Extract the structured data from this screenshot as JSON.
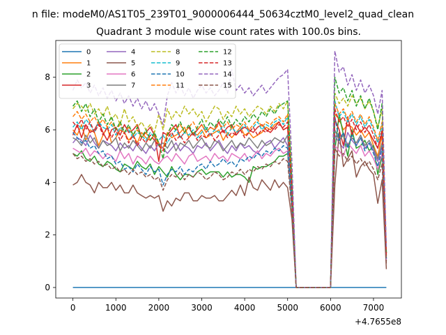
{
  "chart_data": {
    "type": "line",
    "suptitle": "n file: modeM0/AS1T05_239T01_9000006444_50634cztM0_level2_quad_clean",
    "title": "Quadrant 3 module wise count rates with 100.0s bins.",
    "xlabel": "",
    "ylabel": "",
    "x_offset_label": "+4.7655e8",
    "xlim": [
      -400,
      7650
    ],
    "ylim": [
      -0.4,
      9.4
    ],
    "xticks": [
      0,
      1000,
      2000,
      3000,
      4000,
      5000,
      6000,
      7000
    ],
    "yticks": [
      0,
      2,
      4,
      6,
      8
    ],
    "x_start": 0,
    "x_step": 100,
    "legend": {
      "placement": "upper-left",
      "ncol": 4
    },
    "series": [
      {
        "name": "0",
        "color": "#1f77b4",
        "dash": "solid",
        "values": [
          0,
          0,
          0,
          0,
          0,
          0,
          0,
          0,
          0,
          0,
          0,
          0,
          0,
          0,
          0,
          0,
          0,
          0,
          0,
          0,
          0,
          0,
          0,
          0,
          0,
          0,
          0,
          0,
          0,
          0,
          0,
          0,
          0,
          0,
          0,
          0,
          0,
          0,
          0,
          0,
          0,
          0,
          0,
          0,
          0,
          0,
          0,
          0,
          0,
          0,
          0,
          0,
          0,
          0,
          0,
          0,
          0,
          0,
          0,
          0,
          0,
          0,
          0,
          0,
          0,
          0,
          0,
          0,
          0,
          0,
          0,
          0,
          0,
          0
        ]
      },
      {
        "name": "1",
        "color": "#ff7f0e",
        "dash": "solid",
        "values": [
          6.0,
          5.8,
          6.2,
          5.6,
          6.0,
          5.9,
          5.4,
          5.8,
          6.1,
          5.5,
          5.7,
          6.0,
          5.9,
          5.6,
          5.8,
          5.5,
          5.9,
          5.7,
          5.6,
          5.8,
          5.4,
          5.3,
          5.9,
          5.7,
          5.8,
          5.9,
          6.1,
          5.7,
          5.9,
          5.8,
          6.0,
          5.7,
          5.8,
          5.9,
          6.0,
          5.6,
          5.9,
          5.7,
          5.9,
          6.1,
          5.8,
          5.9,
          5.7,
          5.8,
          5.9,
          6.1,
          6.0,
          6.2,
          6.3,
          6.0,
          6.1,
          3.4,
          0,
          0,
          0,
          0,
          0,
          0,
          0,
          0,
          0,
          6.6,
          6.4,
          6.0,
          6.2,
          6.1,
          5.8,
          6.0,
          5.7,
          5.9,
          5.4,
          5.0,
          5.8,
          1.2
        ]
      },
      {
        "name": "2",
        "color": "#2ca02c",
        "dash": "solid",
        "values": [
          5.1,
          5.0,
          5.2,
          4.9,
          4.8,
          5.0,
          4.7,
          4.6,
          4.8,
          4.7,
          4.5,
          4.4,
          4.7,
          4.6,
          4.5,
          4.8,
          4.6,
          4.5,
          4.7,
          4.3,
          4.6,
          4.4,
          4.2,
          4.6,
          4.3,
          4.1,
          4.3,
          4.3,
          4.2,
          4.4,
          4.5,
          4.3,
          4.4,
          4.4,
          4.4,
          4.2,
          4.4,
          4.2,
          4.3,
          4.3,
          4.2,
          4.0,
          4.6,
          4.5,
          4.6,
          4.6,
          4.7,
          4.8,
          5.0,
          5.0,
          5.1,
          3.0,
          0,
          0,
          0,
          0,
          0,
          0,
          0,
          0,
          0,
          5.2,
          6.6,
          5.8,
          5.0,
          6.0,
          5.3,
          5.4,
          5.6,
          5.2,
          5.4,
          4.3,
          5.0,
          1.0
        ]
      },
      {
        "name": "3",
        "color": "#d62728",
        "dash": "solid",
        "values": [
          5.8,
          6.2,
          5.7,
          6.2,
          5.9,
          6.0,
          6.3,
          5.9,
          5.6,
          6.0,
          6.1,
          5.8,
          6.2,
          5.9,
          6.0,
          6.2,
          5.7,
          5.9,
          6.1,
          5.8,
          4.8,
          5.9,
          5.8,
          6.0,
          6.2,
          5.7,
          5.9,
          6.1,
          5.8,
          6.0,
          6.2,
          5.9,
          6.1,
          6.0,
          6.3,
          5.9,
          6.1,
          6.2,
          5.8,
          6.0,
          6.1,
          6.0,
          5.9,
          6.1,
          6.2,
          6.0,
          5.9,
          6.1,
          6.3,
          6.0,
          6.1,
          3.4,
          0,
          0,
          0,
          0,
          0,
          0,
          0,
          0,
          0,
          6.4,
          6.0,
          5.4,
          6.5,
          5.8,
          6.2,
          5.9,
          6.1,
          5.9,
          5.6,
          5.3,
          5.9,
          1.3
        ]
      },
      {
        "name": "4",
        "color": "#9467bd",
        "dash": "solid",
        "values": [
          5.5,
          5.7,
          5.6,
          5.4,
          5.8,
          5.5,
          5.3,
          5.6,
          5.5,
          5.4,
          5.2,
          5.5,
          5.3,
          5.4,
          5.2,
          5.5,
          5.3,
          5.1,
          5.4,
          5.2,
          5.5,
          5.3,
          5.1,
          5.3,
          5.5,
          5.2,
          5.4,
          5.3,
          5.1,
          5.4,
          5.3,
          5.5,
          5.2,
          5.4,
          5.6,
          5.3,
          5.1,
          5.4,
          5.2,
          5.5,
          5.3,
          5.4,
          5.2,
          5.1,
          5.3,
          5.5,
          5.6,
          5.3,
          5.5,
          5.7,
          5.4,
          3.2,
          0,
          0,
          0,
          0,
          0,
          0,
          0,
          0,
          0,
          5.8,
          5.5,
          5.3,
          5.9,
          5.6,
          5.4,
          5.7,
          5.3,
          5.5,
          5.2,
          4.8,
          5.4,
          1.1
        ]
      },
      {
        "name": "5",
        "color": "#8c564b",
        "dash": "solid",
        "values": [
          3.9,
          4.0,
          4.3,
          4.0,
          3.9,
          3.6,
          4.0,
          3.8,
          3.8,
          4.0,
          3.7,
          3.9,
          3.6,
          3.6,
          3.9,
          3.6,
          3.5,
          3.4,
          3.5,
          3.4,
          3.5,
          2.9,
          3.3,
          3.1,
          3.4,
          3.3,
          3.6,
          3.6,
          3.3,
          3.3,
          3.5,
          3.4,
          3.4,
          3.5,
          3.3,
          3.3,
          3.5,
          3.7,
          3.5,
          3.9,
          3.5,
          4.2,
          3.8,
          3.7,
          4.1,
          3.9,
          3.7,
          4.1,
          3.8,
          4.0,
          3.8,
          2.6,
          0,
          0,
          0,
          0,
          0,
          0,
          0,
          0,
          0,
          3.9,
          5.9,
          4.6,
          4.9,
          5.2,
          4.2,
          4.6,
          4.8,
          4.5,
          4.3,
          3.2,
          4.1,
          0.7
        ]
      },
      {
        "name": "6",
        "color": "#e377c2",
        "dash": "solid",
        "values": [
          5.3,
          5.2,
          5.1,
          5.3,
          5.0,
          5.2,
          5.1,
          4.9,
          5.1,
          5.0,
          4.8,
          5.2,
          4.9,
          5.1,
          4.7,
          5.0,
          4.9,
          4.7,
          5.0,
          4.8,
          4.7,
          4.9,
          5.0,
          4.8,
          5.1,
          4.9,
          4.7,
          5.0,
          5.1,
          4.8,
          4.9,
          5.0,
          4.8,
          5.1,
          4.9,
          5.0,
          4.8,
          5.1,
          5.0,
          4.9,
          5.1,
          4.8,
          5.0,
          5.2,
          4.9,
          5.1,
          5.0,
          5.2,
          5.3,
          5.1,
          5.2,
          3.1,
          0,
          0,
          0,
          0,
          0,
          0,
          0,
          0,
          0,
          5.4,
          5.2,
          5.0,
          5.5,
          5.3,
          5.1,
          5.4,
          5.0,
          5.2,
          4.9,
          4.5,
          5.1,
          1.0
        ]
      },
      {
        "name": "7",
        "color": "#7f7f7f",
        "dash": "solid",
        "values": [
          5.7,
          5.6,
          5.4,
          5.8,
          5.5,
          5.7,
          5.3,
          5.6,
          5.4,
          5.5,
          5.7,
          5.2,
          5.5,
          5.3,
          5.6,
          5.4,
          5.2,
          5.5,
          5.3,
          5.6,
          5.4,
          5.5,
          5.3,
          5.6,
          5.2,
          5.5,
          5.4,
          5.6,
          5.3,
          5.5,
          5.7,
          5.4,
          5.3,
          5.6,
          5.5,
          5.2,
          5.4,
          5.6,
          5.3,
          5.5,
          5.4,
          5.7,
          5.5,
          5.3,
          5.6,
          5.4,
          5.5,
          5.7,
          5.6,
          5.5,
          5.8,
          3.3,
          0,
          0,
          0,
          0,
          0,
          0,
          0,
          0,
          0,
          6.0,
          5.6,
          5.8,
          5.4,
          5.7,
          5.5,
          5.8,
          5.4,
          5.6,
          5.3,
          4.9,
          5.5,
          1.1
        ]
      },
      {
        "name": "8",
        "color": "#bcbd22",
        "dash": "dashed",
        "values": [
          6.8,
          7.0,
          6.9,
          6.7,
          7.0,
          6.6,
          6.8,
          6.5,
          6.9,
          6.4,
          6.6,
          6.2,
          6.8,
          6.3,
          6.5,
          6.1,
          6.3,
          6.0,
          6.2,
          5.9,
          6.6,
          6.0,
          6.8,
          6.4,
          6.7,
          6.5,
          6.9,
          6.6,
          6.8,
          6.5,
          6.7,
          6.3,
          6.6,
          6.9,
          6.8,
          6.4,
          6.7,
          6.5,
          6.9,
          6.6,
          6.8,
          6.5,
          6.7,
          6.9,
          6.8,
          6.6,
          6.9,
          6.7,
          7.0,
          6.8,
          7.1,
          4.2,
          0,
          0,
          0,
          0,
          0,
          0,
          0,
          0,
          0,
          7.4,
          7.0,
          7.2,
          6.9,
          7.3,
          7.0,
          7.2,
          6.8,
          7.1,
          6.7,
          6.1,
          6.8,
          1.4
        ]
      },
      {
        "name": "9",
        "color": "#17becf",
        "dash": "dashed",
        "values": [
          6.1,
          6.3,
          6.0,
          6.4,
          6.2,
          5.9,
          6.3,
          6.1,
          6.0,
          6.2,
          5.8,
          6.1,
          5.9,
          6.0,
          5.7,
          5.9,
          5.8,
          5.6,
          5.9,
          5.7,
          5.6,
          5.8,
          5.5,
          5.8,
          6.0,
          5.7,
          5.9,
          5.8,
          6.0,
          5.7,
          5.9,
          6.1,
          5.8,
          6.0,
          5.9,
          6.2,
          5.8,
          6.1,
          5.9,
          6.0,
          6.2,
          5.9,
          6.1,
          6.3,
          6.0,
          6.2,
          6.1,
          6.3,
          6.4,
          6.2,
          6.5,
          3.8,
          0,
          0,
          0,
          0,
          0,
          0,
          0,
          0,
          0,
          7.1,
          6.5,
          6.7,
          6.3,
          6.6,
          6.2,
          6.5,
          6.1,
          6.4,
          6.0,
          5.5,
          6.2,
          1.3
        ]
      },
      {
        "name": "10",
        "color": "#1f77b4",
        "dash": "dashed",
        "values": [
          5.9,
          5.7,
          5.5,
          5.6,
          5.3,
          5.4,
          5.1,
          5.2,
          4.9,
          5.0,
          4.7,
          4.8,
          4.5,
          4.6,
          4.4,
          4.7,
          4.5,
          4.3,
          4.6,
          4.4,
          4.5,
          3.9,
          4.3,
          4.5,
          4.4,
          4.6,
          4.3,
          4.5,
          4.4,
          4.6,
          4.7,
          4.5,
          4.8,
          4.6,
          4.7,
          4.9,
          4.7,
          4.8,
          4.6,
          4.9,
          4.8,
          5.0,
          4.9,
          5.1,
          5.0,
          5.2,
          5.1,
          5.3,
          5.2,
          5.4,
          5.3,
          3.2,
          0,
          0,
          0,
          0,
          0,
          0,
          0,
          0,
          0,
          6.5,
          5.6,
          5.9,
          5.3,
          5.8,
          5.4,
          5.7,
          5.2,
          5.5,
          5.1,
          4.6,
          5.3,
          1.1
        ]
      },
      {
        "name": "11",
        "color": "#ff7f0e",
        "dash": "dashed",
        "values": [
          6.5,
          6.7,
          6.4,
          6.6,
          6.3,
          6.5,
          6.2,
          6.4,
          6.1,
          6.3,
          6.0,
          6.2,
          5.9,
          6.1,
          5.8,
          6.0,
          5.7,
          5.9,
          5.6,
          5.8,
          5.5,
          5.2,
          5.9,
          6.1,
          6.0,
          6.2,
          5.9,
          6.1,
          6.3,
          6.0,
          6.2,
          5.9,
          6.1,
          6.0,
          6.2,
          6.1,
          6.3,
          6.0,
          6.2,
          6.1,
          6.3,
          6.0,
          6.2,
          6.4,
          6.1,
          6.3,
          6.2,
          6.4,
          6.5,
          6.3,
          6.6,
          3.9,
          0,
          0,
          0,
          0,
          0,
          0,
          0,
          0,
          0,
          7.0,
          6.6,
          6.8,
          6.4,
          6.7,
          6.3,
          6.6,
          6.2,
          6.5,
          6.1,
          5.6,
          6.3,
          1.3
        ]
      },
      {
        "name": "12",
        "color": "#2ca02c",
        "dash": "dashed",
        "values": [
          6.9,
          7.1,
          6.7,
          7.0,
          6.5,
          6.8,
          6.3,
          6.6,
          6.2,
          6.5,
          6.0,
          6.3,
          5.9,
          6.2,
          5.8,
          6.1,
          5.7,
          6.0,
          5.6,
          5.9,
          5.5,
          4.9,
          5.8,
          6.2,
          6.0,
          6.3,
          5.9,
          6.2,
          5.8,
          6.1,
          6.4,
          6.0,
          6.3,
          6.1,
          6.4,
          6.2,
          6.5,
          6.1,
          6.4,
          6.2,
          6.5,
          6.3,
          6.6,
          6.4,
          6.7,
          6.5,
          6.8,
          6.6,
          6.9,
          7.0,
          7.1,
          4.0,
          0,
          0,
          0,
          0,
          0,
          0,
          0,
          0,
          0,
          8.0,
          7.4,
          7.6,
          7.1,
          7.5,
          6.9,
          7.3,
          6.8,
          7.2,
          6.7,
          6.0,
          7.0,
          1.3
        ]
      },
      {
        "name": "13",
        "color": "#d62728",
        "dash": "dashed",
        "values": [
          6.3,
          6.1,
          6.4,
          6.0,
          6.3,
          5.9,
          6.2,
          5.8,
          6.1,
          5.7,
          6.0,
          5.6,
          5.9,
          5.5,
          5.8,
          5.4,
          5.7,
          5.5,
          5.8,
          5.6,
          5.4,
          5.2,
          5.7,
          5.9,
          5.6,
          5.8,
          5.5,
          5.7,
          5.9,
          5.6,
          5.8,
          5.7,
          5.9,
          5.6,
          5.8,
          6.0,
          5.7,
          5.9,
          5.8,
          6.0,
          5.7,
          5.9,
          6.1,
          5.8,
          6.0,
          5.9,
          6.1,
          6.0,
          6.2,
          6.1,
          6.3,
          3.7,
          0,
          0,
          0,
          0,
          0,
          0,
          0,
          0,
          0,
          6.8,
          6.3,
          6.5,
          6.1,
          6.4,
          6.0,
          6.3,
          5.9,
          6.2,
          5.8,
          5.3,
          6.0,
          1.2
        ]
      },
      {
        "name": "14",
        "color": "#9467bd",
        "dash": "dashed",
        "values": [
          7.5,
          7.9,
          7.6,
          7.8,
          7.4,
          7.7,
          7.3,
          7.6,
          7.2,
          7.5,
          7.1,
          7.4,
          7.0,
          7.3,
          6.9,
          7.2,
          6.8,
          7.1,
          6.7,
          7.0,
          6.6,
          6.2,
          7.3,
          7.8,
          7.4,
          7.7,
          7.3,
          7.6,
          7.2,
          7.5,
          7.7,
          7.4,
          7.6,
          7.3,
          7.5,
          7.8,
          7.4,
          8.3,
          7.5,
          7.7,
          7.4,
          7.6,
          7.3,
          7.5,
          7.7,
          7.4,
          7.6,
          7.8,
          8.0,
          8.1,
          8.3,
          4.8,
          0,
          0,
          0,
          0,
          0,
          0,
          0,
          0,
          0,
          9.0,
          8.2,
          8.4,
          7.7,
          8.1,
          7.5,
          7.9,
          7.4,
          7.7,
          7.3,
          6.6,
          7.5,
          1.5
        ]
      },
      {
        "name": "15",
        "color": "#8c564b",
        "dash": "dashed",
        "values": [
          5.1,
          4.9,
          5.0,
          4.8,
          4.9,
          4.7,
          4.8,
          4.6,
          4.7,
          4.5,
          4.6,
          4.4,
          4.5,
          4.3,
          4.5,
          4.3,
          4.4,
          4.2,
          4.3,
          4.1,
          4.2,
          3.7,
          4.1,
          4.3,
          4.2,
          4.4,
          4.1,
          4.3,
          4.2,
          4.4,
          4.3,
          4.1,
          4.2,
          4.4,
          4.3,
          4.1,
          4.2,
          4.4,
          4.3,
          4.5,
          4.3,
          4.5,
          4.4,
          4.6,
          4.5,
          4.7,
          4.6,
          4.8,
          4.7,
          4.9,
          4.8,
          2.9,
          0,
          0,
          0,
          0,
          0,
          0,
          0,
          0,
          0,
          5.3,
          5.0,
          5.1,
          4.8,
          5.0,
          4.7,
          4.9,
          4.6,
          4.8,
          4.5,
          4.1,
          4.7,
          0.9
        ]
      }
    ]
  }
}
